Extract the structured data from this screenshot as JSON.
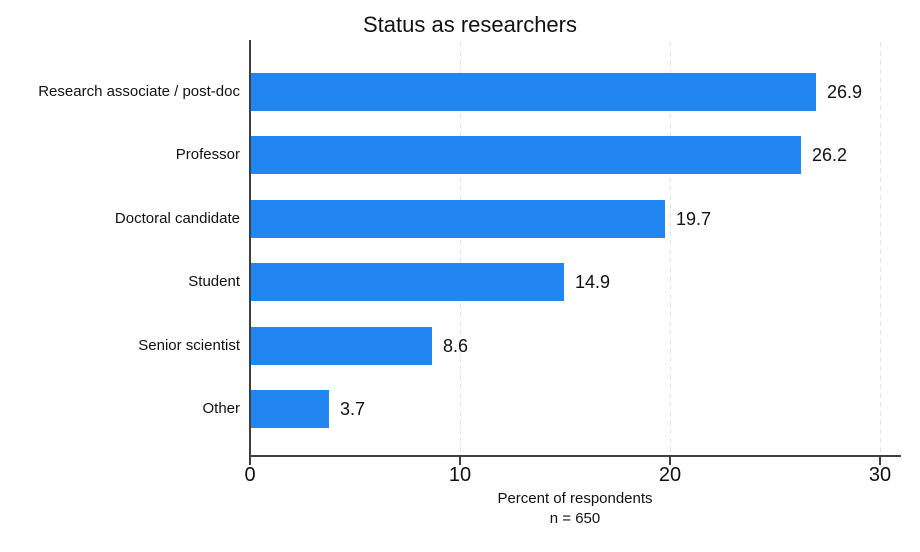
{
  "chart_data": {
    "type": "bar",
    "orientation": "horizontal",
    "title": "Status as researchers",
    "xlabel": "Percent of respondents",
    "note": "n = 650",
    "categories": [
      "Research associate / post-doc",
      "Professor",
      "Doctoral candidate",
      "Student",
      "Senior scientist",
      "Other"
    ],
    "values": [
      26.9,
      26.2,
      19.7,
      14.9,
      8.6,
      3.7
    ],
    "value_labels": [
      "26.9",
      "26.2",
      "19.7",
      "14.9",
      "8.6",
      "3.7"
    ],
    "xlim": [
      0,
      30
    ],
    "xticks": [
      0,
      10,
      20,
      30
    ],
    "xtick_labels": [
      "0",
      "10",
      "20",
      "30"
    ],
    "grid": true,
    "legend": false,
    "colors": {
      "bar": "#2286f2",
      "axis": "#3f3f3f",
      "gridline": "#e4e4e4",
      "text": "#111111",
      "background": "#ffffff"
    }
  }
}
